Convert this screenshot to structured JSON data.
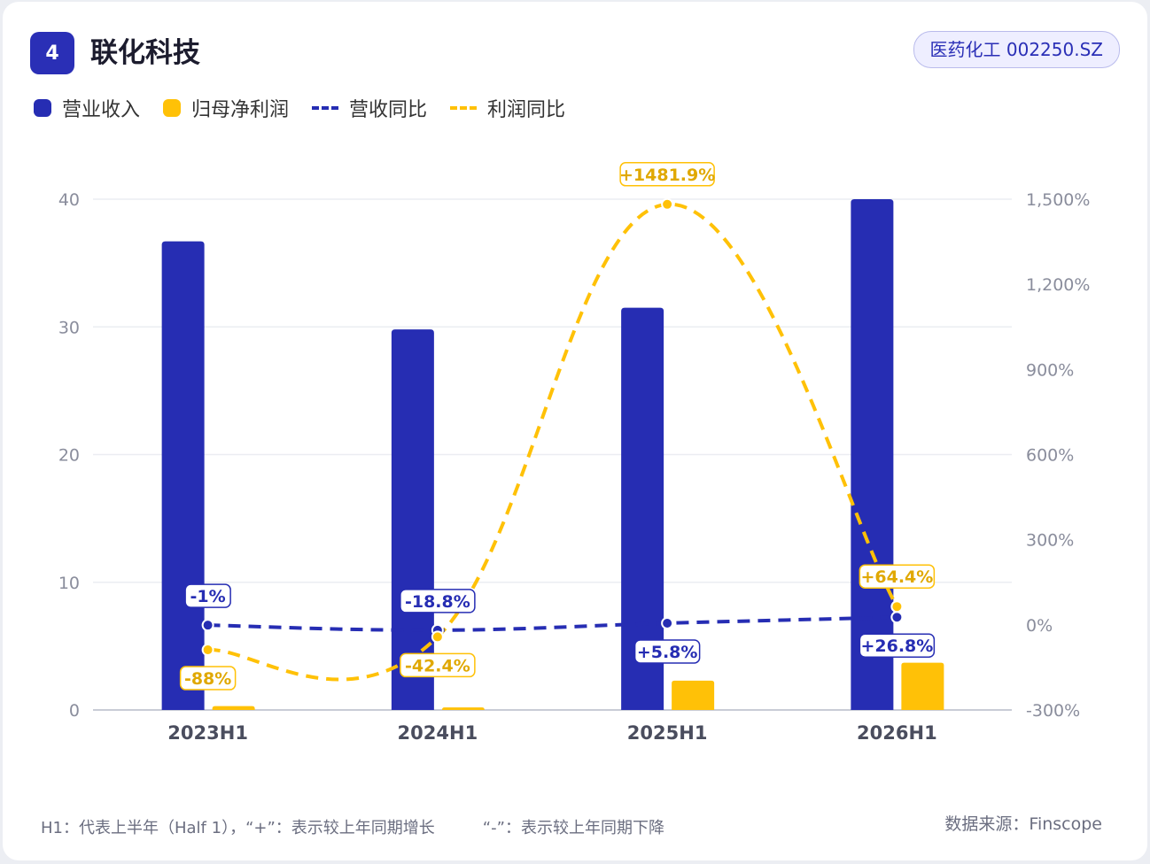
{
  "header": {
    "rank": "4",
    "company": "联化科技",
    "tag": "医药化工 002250.SZ"
  },
  "legend": {
    "revenue": "营业收入",
    "profit": "归母净利润",
    "revenue_yoy": "营收同比",
    "profit_yoy": "利润同比"
  },
  "colors": {
    "revenue": "#262db3",
    "profit": "#ffc107",
    "profit_label_text": "#e0a800"
  },
  "chart_data": {
    "type": "bar",
    "categories": [
      "2023H1",
      "2024H1",
      "2025H1",
      "2026H1"
    ],
    "series": [
      {
        "name": "营业收入",
        "type": "bar",
        "axis": "left",
        "values": [
          36.7,
          29.8,
          31.5,
          40.0
        ]
      },
      {
        "name": "归母净利润",
        "type": "bar",
        "axis": "left",
        "values": [
          0.3,
          0.2,
          2.3,
          3.7
        ]
      },
      {
        "name": "营收同比",
        "type": "line",
        "axis": "right",
        "values": [
          -1,
          -18.8,
          5.8,
          26.8
        ],
        "labels": [
          "-1%",
          "-18.8%",
          "+5.8%",
          "+26.8%"
        ]
      },
      {
        "name": "利润同比",
        "type": "line",
        "axis": "right",
        "values": [
          -88,
          -42.4,
          1481.9,
          64.4
        ],
        "labels": [
          "-88%",
          "-42.4%",
          "+1481.9%",
          "+64.4%"
        ]
      }
    ],
    "left_axis": {
      "ticks": [
        "0",
        "10",
        "20",
        "30",
        "40"
      ],
      "ylim": [
        0,
        40
      ]
    },
    "right_axis": {
      "ticks": [
        "-300%",
        "0%",
        "300%",
        "600%",
        "900%",
        "1,200%",
        "1,500%"
      ],
      "ylim": [
        -300,
        1500
      ]
    },
    "grid": true,
    "legend_position": "top-left"
  },
  "footer": {
    "note": "H1：代表上半年（Half 1），“+”：表示较上年同期增长　　　“-”：表示较上年同期下降",
    "source": "数据来源：Finscope"
  }
}
